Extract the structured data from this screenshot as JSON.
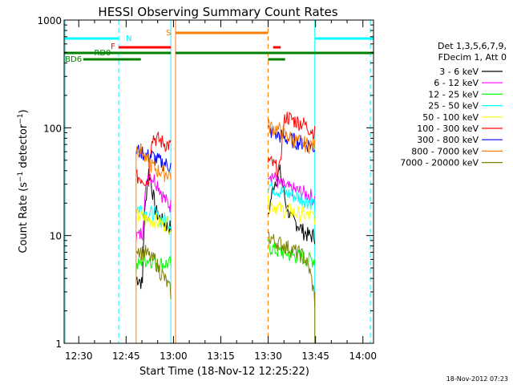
{
  "chart_data": {
    "type": "line",
    "title": "HESSI Observing Summary Count Rates",
    "xlabel": "Start Time (18-Nov-12 12:25:22)",
    "ylabel": "Count Rate (s⁻¹ detector⁻¹)",
    "y_scale": "log",
    "ylim": [
      1,
      1000
    ],
    "xlim_minutes_after_12_25_22": [
      0,
      98
    ],
    "x_ticks": [
      "12:30",
      "12:45",
      "13:00",
      "13:15",
      "13:30",
      "13:45",
      "14:00"
    ],
    "y_ticks": [
      "1",
      "10",
      "100",
      "1000"
    ],
    "footer_timestamp": "18-Nov-2012 07:23",
    "legend": {
      "header1": "Det 1,3,5,6,7,9,",
      "header2": "FDecim 1, Att 0",
      "placement": "right"
    },
    "markers": {
      "N": "N",
      "F": "F",
      "S": "S",
      "RD0": "RD0",
      "BD6": "BD6"
    },
    "flag_colors": {
      "N": "#00ffff",
      "F": "#ff0000",
      "S": "#ff8000",
      "RD0": "#008000",
      "BD6": "#008000"
    },
    "series": [
      {
        "name": "3 - 6 keV",
        "color": "#000000",
        "seg1": [
          4,
          4,
          3.5,
          20,
          40,
          28,
          18,
          15,
          14,
          13,
          12,
          12
        ],
        "seg2": [
          14,
          30,
          40,
          20,
          14,
          13,
          11,
          10,
          10
        ]
      },
      {
        "name": "6 - 12 keV",
        "color": "#ff00ff",
        "seg1": [
          10,
          10,
          11,
          25,
          40,
          35,
          33,
          30,
          25,
          22,
          20,
          19
        ],
        "seg2": [
          40,
          35,
          30,
          28,
          27,
          26,
          25,
          24,
          22
        ]
      },
      {
        "name": "12 - 25 keV",
        "color": "#00ff00",
        "seg1": [
          5,
          5.5,
          6,
          6,
          6,
          6,
          6,
          5.5,
          5.5,
          5.5,
          5.5,
          5.5
        ],
        "seg2": [
          8,
          7.5,
          7,
          7,
          6.5,
          6.5,
          6.3,
          6,
          6
        ]
      },
      {
        "name": "25 - 50 keV",
        "color": "#00ffff",
        "seg1": [
          18,
          18,
          18,
          16,
          16,
          16,
          16,
          15,
          14,
          14,
          14,
          13
        ],
        "seg2": [
          30,
          28,
          26,
          25,
          24,
          23,
          22,
          21,
          20
        ]
      },
      {
        "name": "50 - 100 keV",
        "color": "#ffff00",
        "seg1": [
          15,
          15,
          15,
          14,
          14,
          14,
          14,
          13,
          13,
          13,
          13,
          12
        ],
        "seg2": [
          20,
          19,
          18,
          17,
          17,
          16,
          16,
          15,
          15
        ]
      },
      {
        "name": "100 - 300 keV",
        "color": "#ff0000",
        "seg1": [
          35,
          35,
          34,
          33,
          33,
          85,
          80,
          78,
          75,
          72,
          70,
          68
        ],
        "seg2": [
          50,
          45,
          40,
          130,
          120,
          115,
          110,
          100,
          90
        ]
      },
      {
        "name": "300 - 800 keV",
        "color": "#0000ff",
        "seg1": [
          60,
          62,
          60,
          55,
          55,
          55,
          52,
          50,
          48,
          47,
          45,
          45
        ],
        "seg2": [
          95,
          90,
          85,
          80,
          78,
          75,
          73,
          70,
          65
        ]
      },
      {
        "name": "800 - 7000 keV",
        "color": "#ff8000",
        "seg1": [
          65,
          64,
          60,
          50,
          48,
          45,
          42,
          40,
          40,
          38,
          38,
          37
        ],
        "seg2": [
          105,
          100,
          95,
          85,
          80,
          75,
          72,
          70,
          68
        ]
      },
      {
        "name": "7000 - 20000 keV",
        "color": "#808000",
        "seg1": [
          8,
          7.5,
          7,
          7,
          6.5,
          6,
          6,
          5,
          4.5,
          4,
          3.5,
          3
        ],
        "seg2": [
          10,
          9,
          8.5,
          8,
          7.5,
          7,
          6.5,
          5,
          2.5
        ]
      }
    ]
  }
}
